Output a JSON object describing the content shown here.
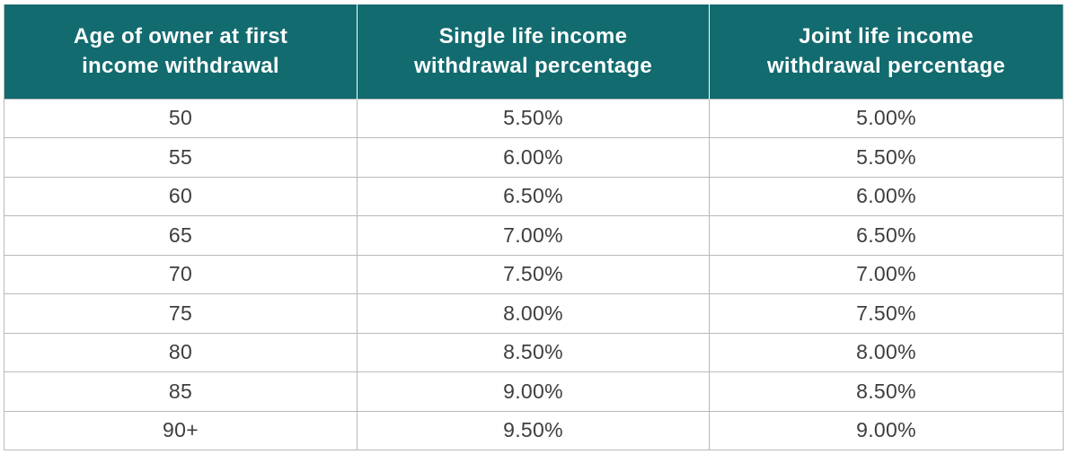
{
  "table": {
    "headers": [
      "Age of owner at first income withdrawal",
      "Single life income withdrawal percentage",
      "Joint life income withdrawal percentage"
    ],
    "header_lines": [
      [
        "Age of owner at first",
        "income withdrawal"
      ],
      [
        "Single life income",
        "withdrawal percentage"
      ],
      [
        "Joint life income",
        "withdrawal percentage"
      ]
    ],
    "rows": [
      [
        "50",
        "5.50%",
        "5.00%"
      ],
      [
        "55",
        "6.00%",
        "5.50%"
      ],
      [
        "60",
        "6.50%",
        "6.00%"
      ],
      [
        "65",
        "7.00%",
        "6.50%"
      ],
      [
        "70",
        "7.50%",
        "7.00%"
      ],
      [
        "75",
        "8.00%",
        "7.50%"
      ],
      [
        "80",
        "8.50%",
        "8.00%"
      ],
      [
        "85",
        "9.00%",
        "8.50%"
      ],
      [
        "90+",
        "9.50%",
        "9.00%"
      ]
    ]
  },
  "colors": {
    "header_bg": "#126b6f",
    "header_text": "#ffffff",
    "body_text": "#3e3e3e",
    "grid": "#b9b9b9"
  }
}
